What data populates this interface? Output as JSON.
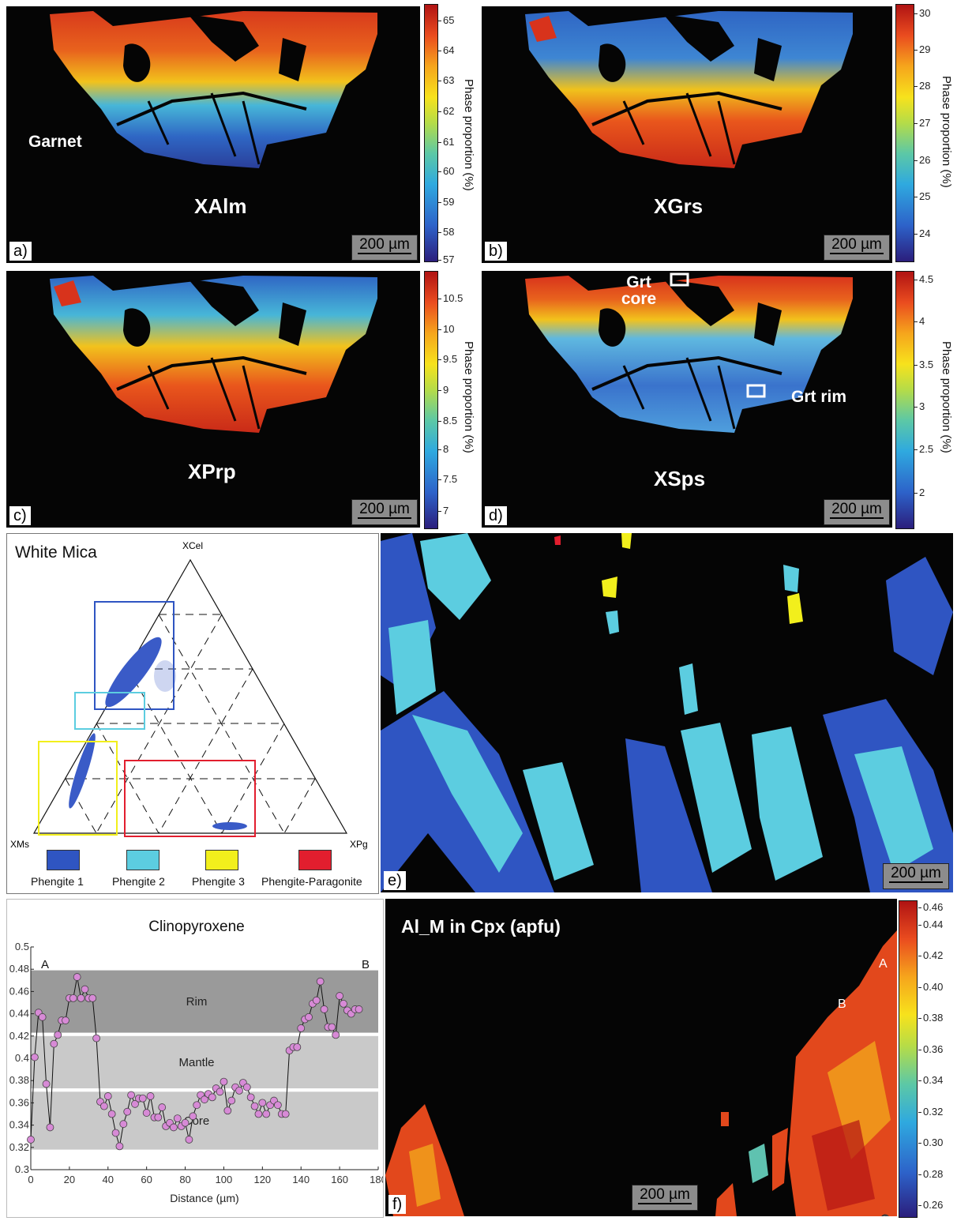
{
  "garnet_label": "Garnet",
  "scale_label": "200 µm",
  "colorbar_label": "Phase proportion (%)",
  "panels": {
    "a": {
      "letter": "a)",
      "title": "XAlm",
      "ticks": [
        "57",
        "58",
        "59",
        "60",
        "61",
        "62",
        "63",
        "64",
        "65"
      ]
    },
    "b": {
      "letter": "b)",
      "title": "XGrs",
      "ticks": [
        "24",
        "25",
        "26",
        "27",
        "28",
        "29",
        "30"
      ]
    },
    "c": {
      "letter": "c)",
      "title": "XPrp",
      "ticks": [
        "7",
        "7.5",
        "8",
        "8.5",
        "9",
        "9.5",
        "10",
        "10.5"
      ]
    },
    "d": {
      "letter": "d)",
      "title": "XSps",
      "ticks": [
        "2",
        "2.5",
        "3",
        "3.5",
        "4",
        "4.5"
      ],
      "box_core": "Grt core",
      "box_core_1": "Grt",
      "box_core_2": "core",
      "box_rim": "Grt rim"
    },
    "e": {
      "letter": "e)",
      "title": "White Mica",
      "apex_top": "XCel",
      "apex_left": "XMs",
      "apex_right": "XPg",
      "legend": [
        {
          "label": "Phengite 1",
          "color": "#2f55c2"
        },
        {
          "label": "Phengite 2",
          "color": "#5ccde0"
        },
        {
          "label": "Phengite 3",
          "color": "#f2ef1c"
        },
        {
          "label": "Phengite-Paragonite",
          "color": "#e21e2e"
        }
      ]
    },
    "f": {
      "letter": "f)",
      "title": "Al_M in Cpx (apfu)",
      "ticks": [
        "0.26",
        "0.28",
        "0.30",
        "0.32",
        "0.34",
        "0.36",
        "0.38",
        "0.40",
        "0.42",
        "0.44",
        "0.46"
      ],
      "point_a": "A",
      "point_b": "B"
    }
  },
  "chart_data": {
    "type": "line",
    "title": "Clinopyroxene",
    "xlabel": "Distance (µm)",
    "ylabel": "",
    "xlim": [
      0,
      180
    ],
    "ylim": [
      0.3,
      0.5
    ],
    "xticks": [
      0,
      20,
      40,
      60,
      80,
      100,
      120,
      140,
      160,
      180
    ],
    "yticks": [
      0.3,
      0.32,
      0.34,
      0.36,
      0.38,
      0.4,
      0.42,
      0.44,
      0.46,
      0.48,
      0.5
    ],
    "corner_left": "A",
    "corner_right": "B",
    "bands": [
      {
        "label": "Rim",
        "from": 0.423,
        "to": 0.479,
        "color": "#9a9a9a"
      },
      {
        "label": "Mantle",
        "from": 0.373,
        "to": 0.42,
        "color": "#c9c9c9"
      },
      {
        "label": "Core",
        "from": 0.318,
        "to": 0.37,
        "color": "#c9c9c9"
      }
    ],
    "series": [
      {
        "marker_color": "#d78ad6",
        "x": [
          0,
          2,
          4,
          6,
          8,
          10,
          12,
          14,
          16,
          18,
          20,
          22,
          24,
          26,
          28,
          30,
          32,
          34,
          36,
          38,
          40,
          42,
          44,
          46,
          48,
          50,
          52,
          54,
          56,
          58,
          60,
          62,
          64,
          66,
          68,
          70,
          72,
          74,
          76,
          78,
          80,
          82,
          84,
          86,
          88,
          90,
          92,
          94,
          96,
          98,
          100,
          102,
          104,
          106,
          108,
          110,
          112,
          114,
          116,
          118,
          120,
          122,
          124,
          126,
          128,
          130,
          132,
          134,
          136,
          138,
          140,
          142,
          144,
          146,
          148,
          150,
          152,
          154,
          156,
          158,
          160,
          162,
          164,
          166,
          168,
          170
        ],
        "y": [
          0.327,
          0.401,
          0.441,
          0.437,
          0.377,
          0.338,
          0.413,
          0.421,
          0.434,
          0.434,
          0.454,
          0.454,
          0.473,
          0.454,
          0.462,
          0.454,
          0.454,
          0.418,
          0.361,
          0.357,
          0.366,
          0.35,
          0.333,
          0.321,
          0.341,
          0.352,
          0.367,
          0.359,
          0.364,
          0.364,
          0.351,
          0.366,
          0.347,
          0.347,
          0.356,
          0.339,
          0.342,
          0.338,
          0.346,
          0.339,
          0.342,
          0.327,
          0.348,
          0.358,
          0.367,
          0.363,
          0.368,
          0.365,
          0.373,
          0.37,
          0.379,
          0.353,
          0.362,
          0.374,
          0.371,
          0.378,
          0.374,
          0.365,
          0.357,
          0.35,
          0.36,
          0.35,
          0.358,
          0.362,
          0.358,
          0.35,
          0.35,
          0.407,
          0.41,
          0.41,
          0.427,
          0.435,
          0.437,
          0.449,
          0.452,
          0.469,
          0.444,
          0.428,
          0.428,
          0.421,
          0.456,
          0.449,
          0.443,
          0.44,
          0.444,
          0.444
        ]
      }
    ]
  }
}
